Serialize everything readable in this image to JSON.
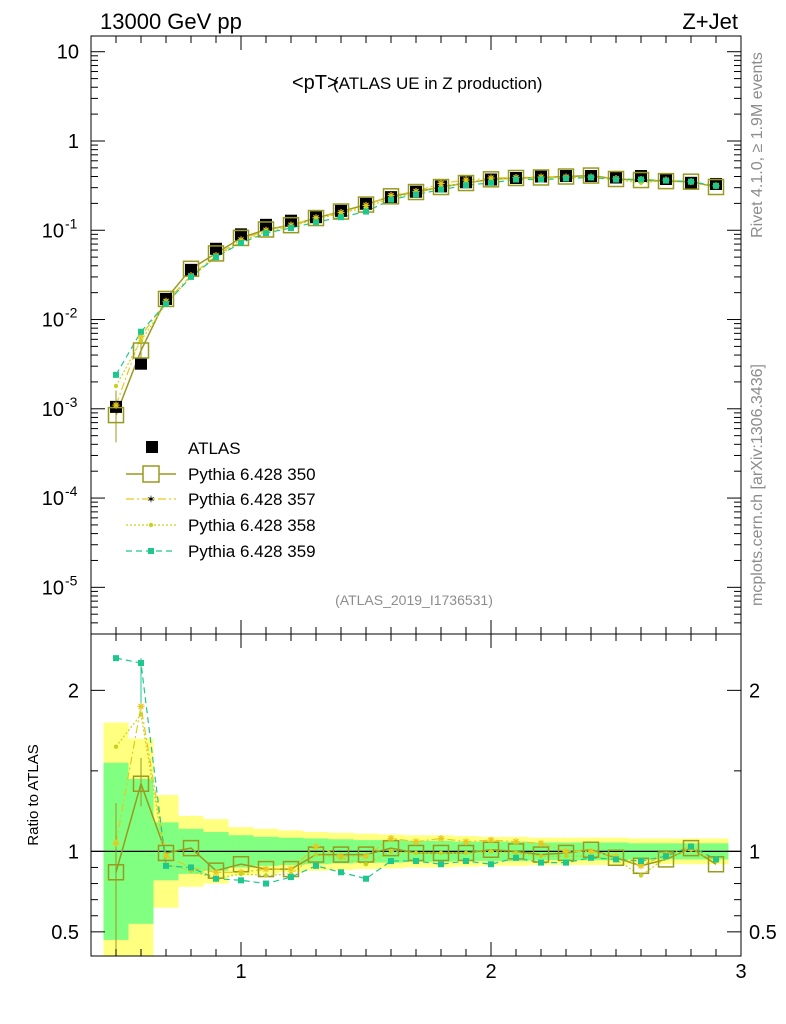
{
  "header": {
    "energy_label": "13000 GeV pp",
    "process_label": "Z+Jet",
    "title": "<pT>",
    "title_suffix": "(ATLAS UE in Z production)",
    "analysis_id": "(ATLAS_2019_I1736531)",
    "side_version": "Rivet 4.1.0, ≥ 1.9M events",
    "side_source": "mcplots.cern.ch [arXiv:1306.3436]"
  },
  "colors": {
    "atlas": "#000000",
    "p350": "#9a9a1e",
    "p357": "#e6c81e",
    "p358": "#c8d21e",
    "p359": "#1ec88c",
    "band_outer": "#ffff80",
    "band_inner": "#80ff80"
  },
  "chart_data": [
    {
      "type": "scatter",
      "title": "<pT> (ATLAS UE in Z production)",
      "xlabel": "",
      "ylabel": "",
      "yscale": "log",
      "xlim": [
        0.4,
        3.0
      ],
      "ylim": [
        3e-06,
        15
      ],
      "y_tick_labels": [
        "10",
        "1",
        "10^-1",
        "10^-2",
        "10^-3",
        "10^-4",
        "10^-5"
      ],
      "legend_position": "lower-left",
      "x": [
        0.5,
        0.6,
        0.7,
        0.8,
        0.9,
        1.0,
        1.1,
        1.2,
        1.3,
        1.4,
        1.5,
        1.6,
        1.7,
        1.8,
        1.9,
        2.0,
        2.1,
        2.2,
        2.3,
        2.4,
        2.5,
        2.6,
        2.7,
        2.8,
        2.9
      ],
      "series": [
        {
          "name": "ATLAS",
          "marker": "square-filled",
          "values": [
            0.00105,
            0.0032,
            0.017,
            0.036,
            0.062,
            0.09,
            0.115,
            0.128,
            0.14,
            0.165,
            0.198,
            0.235,
            0.27,
            0.31,
            0.345,
            0.37,
            0.385,
            0.4,
            0.405,
            0.405,
            0.39,
            0.405,
            0.375,
            0.34,
            0.33
          ]
        },
        {
          "name": "Pythia 6.428 350",
          "marker": "square-open",
          "values": [
            0.00085,
            0.0045,
            0.017,
            0.037,
            0.055,
            0.082,
            0.102,
            0.114,
            0.137,
            0.162,
            0.194,
            0.24,
            0.268,
            0.305,
            0.338,
            0.372,
            0.385,
            0.39,
            0.4,
            0.41,
            0.375,
            0.365,
            0.355,
            0.35,
            0.305
          ]
        },
        {
          "name": "Pythia 6.428 357",
          "marker": "star",
          "values": [
            0.0011,
            0.0065,
            0.016,
            0.031,
            0.052,
            0.078,
            0.1,
            0.114,
            0.138,
            0.158,
            0.19,
            0.245,
            0.272,
            0.335,
            0.365,
            0.385,
            0.39,
            0.395,
            0.395,
            0.395,
            0.38,
            0.37,
            0.365,
            0.35,
            0.315
          ]
        },
        {
          "name": "Pythia 6.428 358",
          "marker": "dot",
          "values": [
            0.0018,
            0.0058,
            0.015,
            0.03,
            0.05,
            0.075,
            0.096,
            0.11,
            0.133,
            0.155,
            0.18,
            0.23,
            0.262,
            0.305,
            0.34,
            0.37,
            0.38,
            0.385,
            0.39,
            0.39,
            0.37,
            0.34,
            0.36,
            0.35,
            0.31
          ]
        },
        {
          "name": "Pythia 6.428 359",
          "marker": "square-small",
          "values": [
            0.0024,
            0.0073,
            0.015,
            0.03,
            0.05,
            0.072,
            0.093,
            0.106,
            0.123,
            0.14,
            0.162,
            0.22,
            0.252,
            0.285,
            0.32,
            0.34,
            0.37,
            0.37,
            0.38,
            0.39,
            0.37,
            0.37,
            0.36,
            0.35,
            0.315
          ]
        }
      ]
    },
    {
      "type": "scatter",
      "title": "",
      "xlabel": "",
      "ylabel": "Ratio to ATLAS",
      "xlim": [
        0.4,
        3.0
      ],
      "ylim": [
        0.35,
        2.35
      ],
      "y_ticks": [
        0.5,
        1,
        2
      ],
      "y_tick_labels": [
        "0.5",
        "1",
        "2"
      ],
      "x_ticks": [
        1,
        2,
        3
      ],
      "x_tick_labels": [
        "1",
        "2",
        "3"
      ],
      "x": [
        0.5,
        0.6,
        0.7,
        0.8,
        0.9,
        1.0,
        1.1,
        1.2,
        1.3,
        1.4,
        1.5,
        1.6,
        1.7,
        1.8,
        1.9,
        2.0,
        2.1,
        2.2,
        2.3,
        2.4,
        2.5,
        2.6,
        2.7,
        2.8,
        2.9
      ],
      "bands": {
        "outer_half_width": [
          0.8,
          0.7,
          0.35,
          0.22,
          0.2,
          0.15,
          0.14,
          0.13,
          0.12,
          0.115,
          0.11,
          0.105,
          0.1,
          0.1,
          0.095,
          0.09,
          0.09,
          0.085,
          0.085,
          0.085,
          0.085,
          0.08,
          0.08,
          0.08,
          0.08
        ],
        "inner_half_width": [
          0.55,
          0.45,
          0.18,
          0.14,
          0.12,
          0.1,
          0.09,
          0.085,
          0.08,
          0.075,
          0.07,
          0.07,
          0.065,
          0.065,
          0.06,
          0.06,
          0.06,
          0.055,
          0.055,
          0.055,
          0.055,
          0.05,
          0.05,
          0.05,
          0.05
        ]
      },
      "series": [
        {
          "name": "Pythia 6.428 350",
          "marker": "square-open",
          "values": [
            0.87,
            1.42,
            0.99,
            1.02,
            0.88,
            0.92,
            0.89,
            0.89,
            0.98,
            0.98,
            0.98,
            1.02,
            0.99,
            0.99,
            0.99,
            1.01,
            1.0,
            0.98,
            0.99,
            1.01,
            0.96,
            0.91,
            0.95,
            1.02,
            0.92
          ]
        },
        {
          "name": "Pythia 6.428 357",
          "marker": "star",
          "values": [
            1.05,
            1.9,
            0.97,
            0.9,
            0.87,
            0.87,
            0.89,
            0.89,
            1.03,
            0.97,
            0.97,
            1.08,
            1.06,
            1.08,
            1.06,
            1.07,
            1.06,
            1.05,
            1.0,
            1.0,
            0.97,
            0.91,
            0.98,
            1.03,
            0.95
          ]
        },
        {
          "name": "Pythia 6.428 358",
          "marker": "dot",
          "values": [
            1.65,
            1.85,
            0.92,
            0.88,
            0.83,
            0.86,
            0.85,
            0.86,
            0.98,
            0.96,
            0.92,
            1.0,
            0.99,
            0.99,
            0.99,
            1.0,
            0.99,
            0.97,
            0.97,
            0.97,
            0.95,
            0.85,
            0.96,
            1.01,
            0.94
          ]
        },
        {
          "name": "Pythia 6.428 359",
          "marker": "square-small",
          "values": [
            2.2,
            2.17,
            0.91,
            0.9,
            0.83,
            0.82,
            0.8,
            0.84,
            0.91,
            0.87,
            0.83,
            0.94,
            0.94,
            0.92,
            0.94,
            0.92,
            0.96,
            0.93,
            0.93,
            0.96,
            0.95,
            0.94,
            0.97,
            1.03,
            0.95
          ]
        }
      ]
    }
  ]
}
